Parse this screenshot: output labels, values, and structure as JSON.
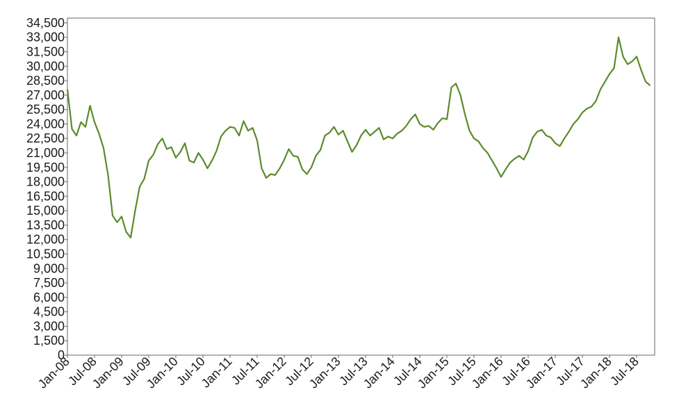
{
  "chart_data": {
    "type": "line",
    "title": "",
    "xlabel": "",
    "ylabel": "",
    "grid": false,
    "legend": "none",
    "colors": {
      "series": "#5a8a2a",
      "axis": "#666666",
      "text": "#1a1a1a"
    },
    "ylim": [
      0,
      35000
    ],
    "xlim": [
      "2008-01",
      "2018-10"
    ],
    "yticks": [
      0,
      1500,
      3000,
      4500,
      6000,
      7500,
      9000,
      10500,
      12000,
      13500,
      15000,
      16500,
      18000,
      19500,
      21000,
      22500,
      24000,
      25500,
      27000,
      28500,
      30000,
      31500,
      33000,
      34500
    ],
    "ytick_labels": [
      "0",
      "1,500",
      "3,000",
      "4,500",
      "6,000",
      "7,500",
      "9,000",
      "10,500",
      "12,000",
      "13,500",
      "15,000",
      "16,500",
      "18,000",
      "19,500",
      "21,000",
      "22,500",
      "24,000",
      "25,500",
      "27,000",
      "28,500",
      "30,000",
      "31,500",
      "33,000",
      "34,500"
    ],
    "xticks": [
      "2008-01",
      "2008-07",
      "2009-01",
      "2009-07",
      "2010-01",
      "2010-07",
      "2011-01",
      "2011-07",
      "2012-01",
      "2012-07",
      "2013-01",
      "2013-07",
      "2014-01",
      "2014-07",
      "2015-01",
      "2015-07",
      "2016-01",
      "2016-07",
      "2017-01",
      "2017-07",
      "2018-01",
      "2018-07"
    ],
    "xtick_labels": [
      "Jan-08",
      "Jul-08",
      "Jan-09",
      "Jul-09",
      "Jan-10",
      "Jul-10",
      "Jan-11",
      "Jul-11",
      "Jan-12",
      "Jul-12",
      "Jan-13",
      "Jul-13",
      "Jan-14",
      "Jul-14",
      "Jan-15",
      "Jul-15",
      "Jan-16",
      "Jul-16",
      "Jan-17",
      "Jul-17",
      "Jan-18",
      "Jul-18"
    ],
    "series": [
      {
        "x": [
          "2008-01",
          "2008-02",
          "2008-03",
          "2008-04",
          "2008-05",
          "2008-06",
          "2008-07",
          "2008-08",
          "2008-09",
          "2008-10",
          "2008-11",
          "2008-12",
          "2009-01",
          "2009-02",
          "2009-03",
          "2009-04",
          "2009-05",
          "2009-06",
          "2009-07",
          "2009-08",
          "2009-09",
          "2009-10",
          "2009-11",
          "2009-12",
          "2010-01",
          "2010-02",
          "2010-03",
          "2010-04",
          "2010-05",
          "2010-06",
          "2010-07",
          "2010-08",
          "2010-09",
          "2010-10",
          "2010-11",
          "2010-12",
          "2011-01",
          "2011-02",
          "2011-03",
          "2011-04",
          "2011-05",
          "2011-06",
          "2011-07",
          "2011-08",
          "2011-09",
          "2011-10",
          "2011-11",
          "2011-12",
          "2012-01",
          "2012-02",
          "2012-03",
          "2012-04",
          "2012-05",
          "2012-06",
          "2012-07",
          "2012-08",
          "2012-09",
          "2012-10",
          "2012-11",
          "2012-12",
          "2013-01",
          "2013-02",
          "2013-03",
          "2013-04",
          "2013-05",
          "2013-06",
          "2013-07",
          "2013-08",
          "2013-09",
          "2013-10",
          "2013-11",
          "2013-12",
          "2014-01",
          "2014-02",
          "2014-03",
          "2014-04",
          "2014-05",
          "2014-06",
          "2014-07",
          "2014-08",
          "2014-09",
          "2014-10",
          "2014-11",
          "2014-12",
          "2015-01",
          "2015-02",
          "2015-03",
          "2015-04",
          "2015-05",
          "2015-06",
          "2015-07",
          "2015-08",
          "2015-09",
          "2015-10",
          "2015-11",
          "2015-12",
          "2016-01",
          "2016-02",
          "2016-03",
          "2016-04",
          "2016-05",
          "2016-06",
          "2016-07",
          "2016-08",
          "2016-09",
          "2016-10",
          "2016-11",
          "2016-12",
          "2017-01",
          "2017-02",
          "2017-03",
          "2017-04",
          "2017-05",
          "2017-06",
          "2017-07",
          "2017-08",
          "2017-09",
          "2017-10",
          "2017-11",
          "2017-12",
          "2018-01",
          "2018-02",
          "2018-03",
          "2018-04",
          "2018-05",
          "2018-06",
          "2018-07",
          "2018-08",
          "2018-09",
          "2018-10"
        ],
        "values": [
          27600,
          23500,
          22800,
          24200,
          23700,
          25900,
          24200,
          23000,
          21500,
          18700,
          14500,
          13800,
          14400,
          12800,
          12200,
          15000,
          17500,
          18300,
          20200,
          20800,
          21900,
          22500,
          21400,
          21600,
          20500,
          21100,
          22000,
          20200,
          20000,
          21000,
          20300,
          19400,
          20200,
          21200,
          22700,
          23300,
          23700,
          23600,
          22800,
          24300,
          23300,
          23600,
          22300,
          19400,
          18400,
          18800,
          18700,
          19400,
          20300,
          21400,
          20700,
          20600,
          19300,
          18800,
          19500,
          20700,
          21300,
          22800,
          23100,
          23700,
          22900,
          23300,
          22200,
          21100,
          21800,
          22800,
          23400,
          22800,
          23200,
          23600,
          22400,
          22700,
          22500,
          23000,
          23300,
          23800,
          24500,
          25000,
          24000,
          23700,
          23800,
          23400,
          24100,
          24600,
          24500,
          27800,
          28200,
          27000,
          25000,
          23300,
          22500,
          22200,
          21500,
          21000,
          20200,
          19400,
          18500,
          19300,
          20000,
          20400,
          20700,
          20300,
          21200,
          22600,
          23200,
          23400,
          22800,
          22600,
          22000,
          21700,
          22500,
          23200,
          24000,
          24500,
          25200,
          25600,
          25800,
          26400,
          27600,
          28400,
          29200,
          29800,
          33000,
          31000,
          30200,
          30500,
          31000,
          29600,
          28400,
          28000
        ]
      }
    ]
  }
}
